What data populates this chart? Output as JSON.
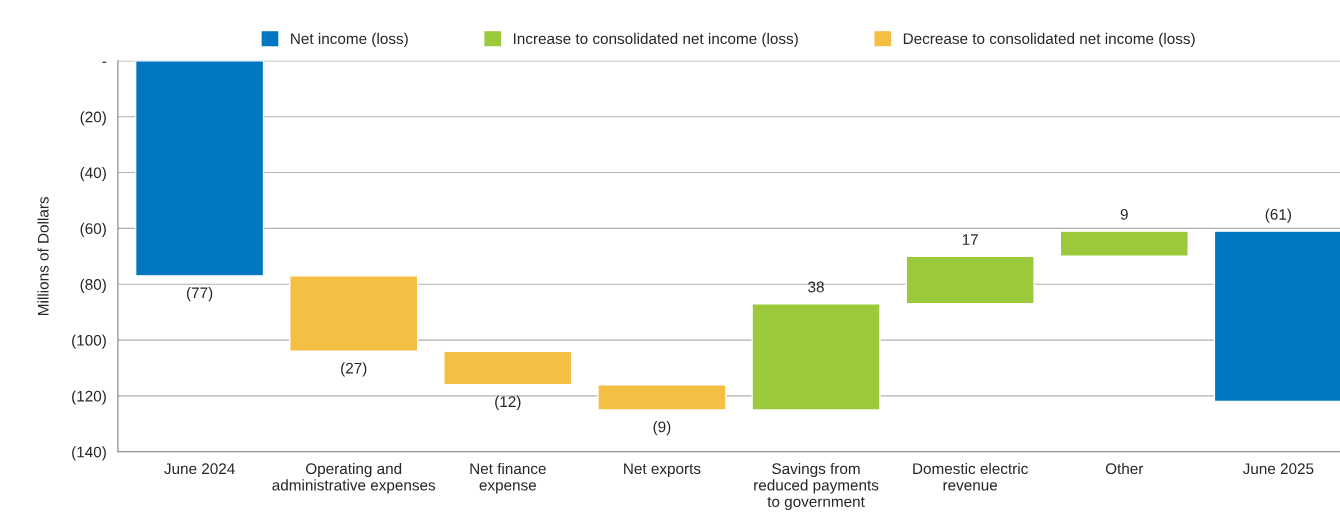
{
  "chart_data": {
    "type": "bar",
    "ylabel": "Millions of Dollars",
    "categories": [
      "June 2024",
      "Operating and\nadministrative expenses",
      "Net finance\nexpense",
      "Net exports",
      "Savings from\nreduced payments\nto government",
      "Domestic electric\nrevenue",
      "Other",
      "June 2025"
    ],
    "series": [
      {
        "name": "Net income (loss)",
        "color": "#0077c0",
        "values": [
          -77,
          null,
          null,
          null,
          null,
          null,
          null,
          -61
        ],
        "base": [
          0,
          null,
          null,
          null,
          null,
          null,
          null,
          -61
        ],
        "value_labels": [
          "(77)",
          null,
          null,
          null,
          null,
          null,
          null,
          "(61)"
        ]
      },
      {
        "name": "Increase to consolidated net income (loss)",
        "color": "#9bc93b",
        "values": [
          null,
          null,
          null,
          null,
          38,
          17,
          9,
          null
        ],
        "base": [
          null,
          null,
          null,
          null,
          -125,
          -87,
          -70,
          null
        ],
        "value_labels": [
          null,
          null,
          null,
          null,
          "38",
          "17",
          "9",
          null
        ]
      },
      {
        "name": "Decrease to consolidated net income (loss)",
        "color": "#f4bf42",
        "values": [
          null,
          -27,
          -12,
          -9,
          null,
          null,
          null,
          null
        ],
        "base": [
          null,
          -77,
          -104,
          -116,
          null,
          null,
          null,
          null
        ],
        "value_labels": [
          null,
          "(27)",
          "(12)",
          "(9)",
          null,
          null,
          null,
          null
        ]
      }
    ],
    "ylim": [
      -140,
      0
    ],
    "yticks": [
      {
        "value": -140,
        "label": "(140)"
      },
      {
        "value": -120,
        "label": "(120)"
      },
      {
        "value": -100,
        "label": "(100)"
      },
      {
        "value": -80,
        "label": "(80)"
      },
      {
        "value": -60,
        "label": "(60)"
      },
      {
        "value": -40,
        "label": "(40)"
      },
      {
        "value": -20,
        "label": "(20)"
      },
      {
        "value": 0,
        "label": "-"
      }
    ],
    "grid": "y",
    "legend": "top"
  }
}
